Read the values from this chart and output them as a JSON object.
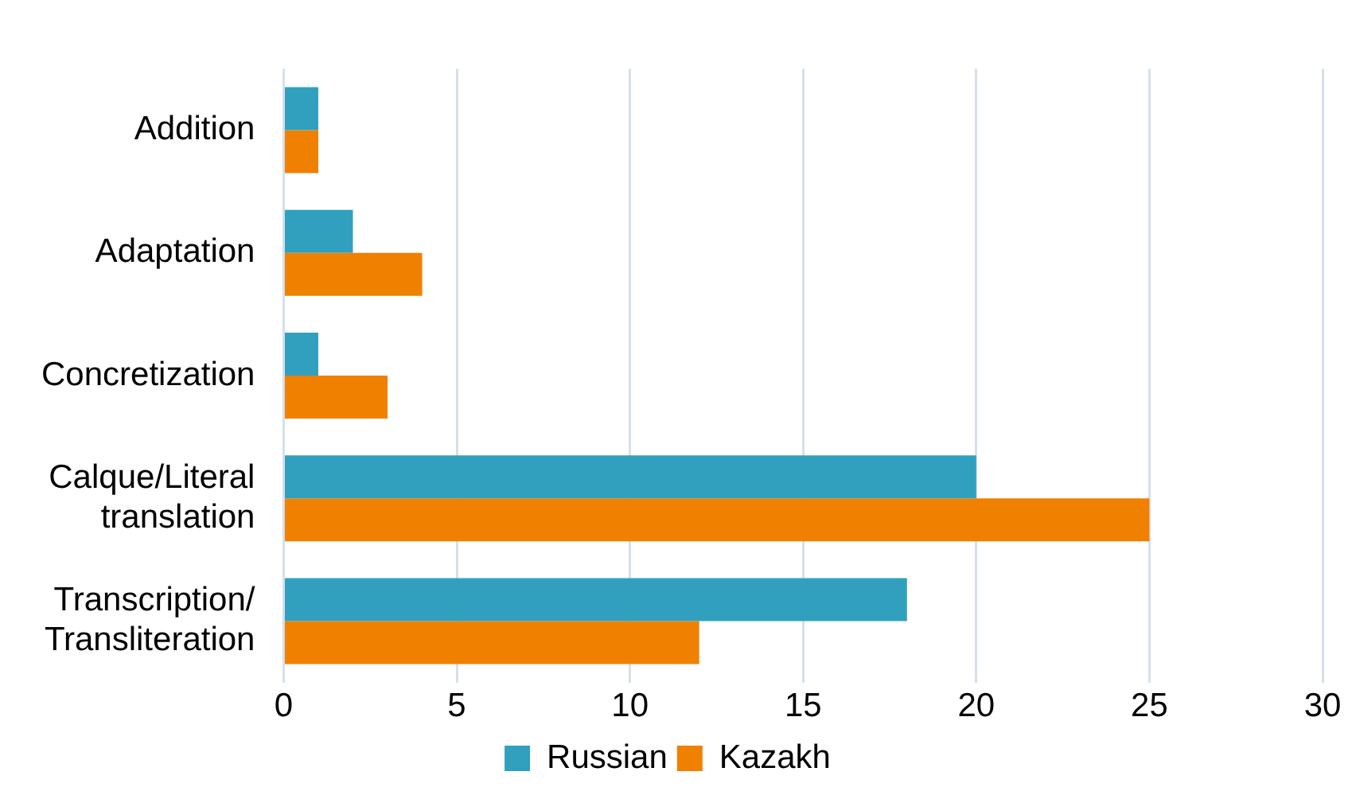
{
  "chart_data": {
    "type": "bar",
    "orientation": "horizontal",
    "categories": [
      "Addition",
      "Adaptation",
      "Concretization",
      "Calque/Literal translation",
      "Transcription/Transliteration"
    ],
    "series": [
      {
        "name": "Russian",
        "color": "#31a0bf",
        "values": [
          1,
          2,
          1,
          20,
          18
        ]
      },
      {
        "name": "Kazakh",
        "color": "#f08000",
        "values": [
          1,
          4,
          3,
          25,
          12
        ]
      }
    ],
    "xlim": [
      0,
      30
    ],
    "xticks": [
      0,
      5,
      10,
      15,
      20,
      25,
      30
    ],
    "grid": "x",
    "legend": "bottom"
  }
}
